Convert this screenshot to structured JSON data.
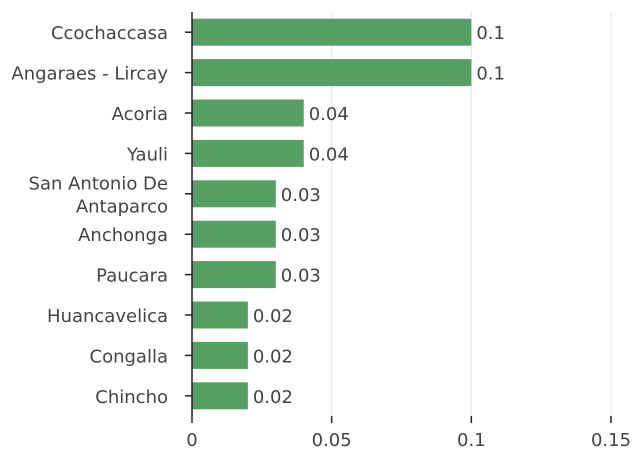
{
  "chart_data": {
    "type": "bar",
    "orientation": "horizontal",
    "title": "",
    "xlabel": "",
    "ylabel": "",
    "categories": [
      "Ccochaccasa",
      "Angaraes - Lircay",
      "Acoria",
      "Yauli",
      "San Antonio De Antaparco",
      "Anchonga",
      "Paucara",
      "Huancavelica",
      "Congalla",
      "Chincho"
    ],
    "category_lines": [
      [
        "Ccochaccasa"
      ],
      [
        "Angaraes - Lircay"
      ],
      [
        "Acoria"
      ],
      [
        "Yauli"
      ],
      [
        "San Antonio De",
        "Antaparco"
      ],
      [
        "Anchonga"
      ],
      [
        "Paucara"
      ],
      [
        "Huancavelica"
      ],
      [
        "Congalla"
      ],
      [
        "Chincho"
      ]
    ],
    "values": [
      0.1,
      0.1,
      0.04,
      0.04,
      0.03,
      0.03,
      0.03,
      0.02,
      0.02,
      0.02
    ],
    "value_labels": [
      "0.1",
      "0.1",
      "0.04",
      "0.04",
      "0.03",
      "0.03",
      "0.03",
      "0.02",
      "0.02",
      "0.02"
    ],
    "xlim": [
      0,
      0.15
    ],
    "xticks": [
      0,
      0.05,
      0.1,
      0.15
    ],
    "xtick_labels": [
      "0",
      "0.05",
      "0.1",
      "0.15"
    ],
    "grid": "vertical",
    "bar_color": "#55a062"
  }
}
